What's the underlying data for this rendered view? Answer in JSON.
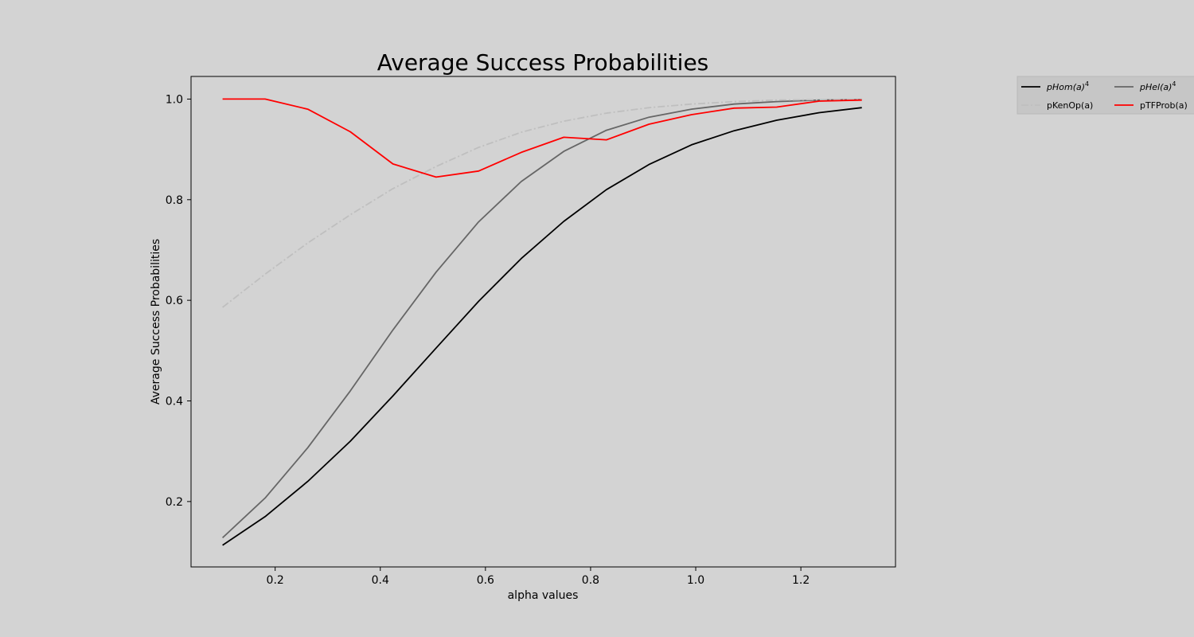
{
  "chart_data": {
    "type": "line",
    "title": "Average Success Probabilities",
    "xlabel": "alpha values",
    "ylabel": "Average Success Probabilities",
    "xlim": [
      0.04,
      1.38
    ],
    "ylim": [
      0.07,
      1.045
    ],
    "xticks": [
      0.2,
      0.4,
      0.6,
      0.8,
      1.0,
      1.2
    ],
    "xtick_labels": [
      "0.2",
      "0.4",
      "0.6",
      "0.8",
      "1.0",
      "1.2"
    ],
    "yticks": [
      0.2,
      0.4,
      0.6,
      0.8,
      1.0
    ],
    "ytick_labels": [
      "0.2",
      "0.4",
      "0.6",
      "0.8",
      "1.0"
    ],
    "grid": false,
    "legend_position": "outside top-right",
    "legend_columns": 2,
    "x": [
      0.1,
      0.181,
      0.262,
      0.343,
      0.424,
      0.506,
      0.587,
      0.668,
      0.749,
      0.83,
      0.911,
      0.992,
      1.073,
      1.154,
      1.235,
      1.316
    ],
    "series": [
      {
        "name": "pHom(a)",
        "name_superscript": "4",
        "color": "#000000",
        "dash": "solid",
        "values": [
          0.113,
          0.17,
          0.24,
          0.32,
          0.41,
          0.505,
          0.598,
          0.683,
          0.757,
          0.82,
          0.87,
          0.909,
          0.937,
          0.958,
          0.973,
          0.983
        ]
      },
      {
        "name": "pHel(a)",
        "name_superscript": "4",
        "color": "#666666",
        "dash": "solid",
        "values": [
          0.128,
          0.207,
          0.307,
          0.42,
          0.541,
          0.656,
          0.756,
          0.836,
          0.896,
          0.938,
          0.964,
          0.98,
          0.99,
          0.995,
          0.998,
          0.999
        ]
      },
      {
        "name": "pKenOp(a)",
        "name_superscript": "",
        "color": "#bfbfbf",
        "dash": "dashdot",
        "values": [
          0.586,
          0.652,
          0.714,
          0.77,
          0.822,
          0.866,
          0.904,
          0.934,
          0.956,
          0.972,
          0.983,
          0.99,
          0.995,
          0.998,
          0.999,
          1.0
        ]
      },
      {
        "name": "pTFProb(a)",
        "name_superscript": "",
        "color": "#ff0000",
        "dash": "solid",
        "values": [
          1.0,
          1.0,
          0.98,
          0.935,
          0.871,
          0.845,
          0.857,
          0.894,
          0.924,
          0.919,
          0.95,
          0.969,
          0.982,
          0.984,
          0.996,
          0.998
        ]
      }
    ]
  }
}
